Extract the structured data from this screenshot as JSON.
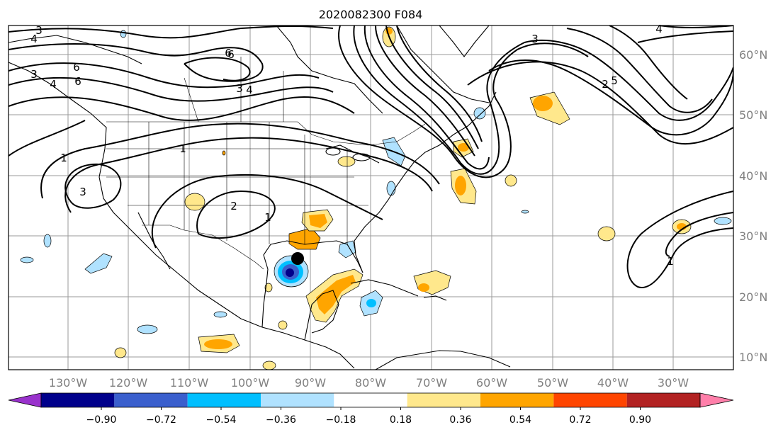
{
  "title": "2020082300 F084",
  "map": {
    "lon_ticks": [
      "130°W",
      "120°W",
      "110°W",
      "100°W",
      "90°W",
      "80°W",
      "70°W",
      "60°W",
      "50°W",
      "40°W",
      "30°W"
    ],
    "lat_ticks": [
      "60°N",
      "50°N",
      "40°N",
      "30°N",
      "20°N",
      "10°N"
    ],
    "contour_labels": [
      "3",
      "4",
      "6",
      "3",
      "4",
      "6",
      "2",
      "5",
      "6",
      "3",
      "4",
      "6",
      "3",
      "4",
      "1",
      "3",
      "1",
      "2",
      "1",
      "1"
    ],
    "storm_marker": "black-circle"
  },
  "colorbar": {
    "ticks": [
      "−0.90",
      "−0.72",
      "−0.54",
      "−0.36",
      "−0.18",
      "0.18",
      "0.36",
      "0.54",
      "0.72",
      "0.90"
    ],
    "colors": [
      "#9932cc",
      "#00008b",
      "#3a5fcd",
      "#00bfff",
      "#b0e2ff",
      "#ffffff",
      "#ffe88c",
      "#ffa500",
      "#ff4500",
      "#b22222",
      "#ff7faa"
    ]
  }
}
